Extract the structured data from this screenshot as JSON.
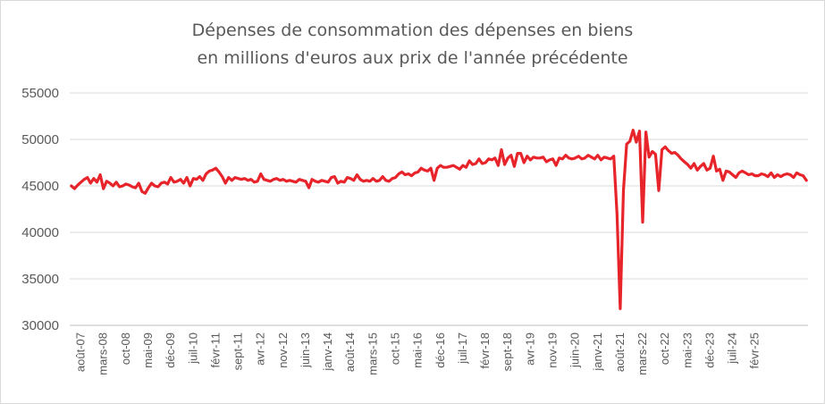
{
  "chart_data": {
    "type": "line",
    "title": "Dépenses de consommation des dépenses en biens",
    "subtitle": "en millions d'euros aux prix de l'année précédente",
    "xlabel": "",
    "ylabel": "",
    "ylim": [
      30000,
      55000
    ],
    "yticks": [
      "30000",
      "35000",
      "40000",
      "45000",
      "50000",
      "55000"
    ],
    "grid": "horizontal",
    "legend": "none",
    "line_color": "#e8242b",
    "start_month": "2007-05",
    "x_tick_labels": [
      "août-07",
      "mars-08",
      "oct-08",
      "mai-09",
      "déc-09",
      "juil-10",
      "févr-11",
      "sept-11",
      "avr-12",
      "nov-12",
      "juin-13",
      "janv-14",
      "août-14",
      "mars-15",
      "oct-15",
      "mai-16",
      "déc-16",
      "juil-17",
      "févr-18",
      "sept-18",
      "avr-19",
      "nov-19",
      "juin-20",
      "janv-21",
      "août-21",
      "mars-22",
      "oct-22",
      "mai-23",
      "déc-23",
      "juil-24",
      "févr-25"
    ],
    "values": [
      45000,
      44700,
      45100,
      45400,
      45700,
      45900,
      45300,
      45800,
      45400,
      46200,
      44700,
      45500,
      45300,
      45000,
      45400,
      44900,
      45000,
      45200,
      45100,
      44900,
      44800,
      45300,
      44400,
      44200,
      44800,
      45300,
      45000,
      44900,
      45300,
      45400,
      45200,
      45900,
      45400,
      45500,
      45700,
      45300,
      45900,
      45000,
      45800,
      45700,
      46000,
      45600,
      46300,
      46600,
      46700,
      46900,
      46500,
      46000,
      45300,
      45900,
      45600,
      45900,
      45800,
      45700,
      45800,
      45600,
      45700,
      45400,
      45500,
      46300,
      45700,
      45600,
      45500,
      45700,
      45800,
      45600,
      45700,
      45500,
      45600,
      45500,
      45400,
      45700,
      45600,
      45500,
      44800,
      45700,
      45500,
      45400,
      45600,
      45500,
      45400,
      45900,
      46000,
      45300,
      45500,
      45400,
      45900,
      45800,
      45600,
      46200,
      45700,
      45500,
      45600,
      45500,
      45800,
      45500,
      45600,
      46000,
      45600,
      45500,
      45800,
      45900,
      46300,
      46500,
      46200,
      46300,
      46100,
      46400,
      46500,
      46900,
      46700,
      46600,
      46900,
      45600,
      46900,
      47200,
      47000,
      47000,
      47100,
      47200,
      47000,
      46800,
      47200,
      47000,
      47700,
      47300,
      47400,
      47900,
      47400,
      47500,
      47900,
      47800,
      48000,
      47200,
      48900,
      47300,
      48000,
      48300,
      47100,
      48500,
      48500,
      47500,
      48200,
      47800,
      48100,
      48000,
      48000,
      48100,
      47600,
      47800,
      47900,
      47200,
      48000,
      47900,
      48300,
      48000,
      47900,
      48000,
      48200,
      47900,
      48000,
      48300,
      48100,
      47900,
      48300,
      47800,
      48100,
      48000,
      47900,
      48200,
      42000,
      31800,
      44500,
      49500,
      49800,
      51000,
      49700,
      50900,
      41100,
      50800,
      48100,
      48700,
      48400,
      44500,
      48900,
      49200,
      48800,
      48500,
      48600,
      48300,
      47900,
      47600,
      47300,
      46900,
      47400,
      46700,
      47100,
      47400,
      46700,
      46900,
      48200,
      46600,
      46800,
      45600,
      46600,
      46500,
      46200,
      45900,
      46400,
      46600,
      46400,
      46200,
      46300,
      46100,
      46100,
      46300,
      46200,
      46000,
      46400,
      45900,
      46200,
      46000,
      46200,
      46300,
      46200,
      45900,
      46400,
      46200,
      46100,
      45600
    ]
  }
}
